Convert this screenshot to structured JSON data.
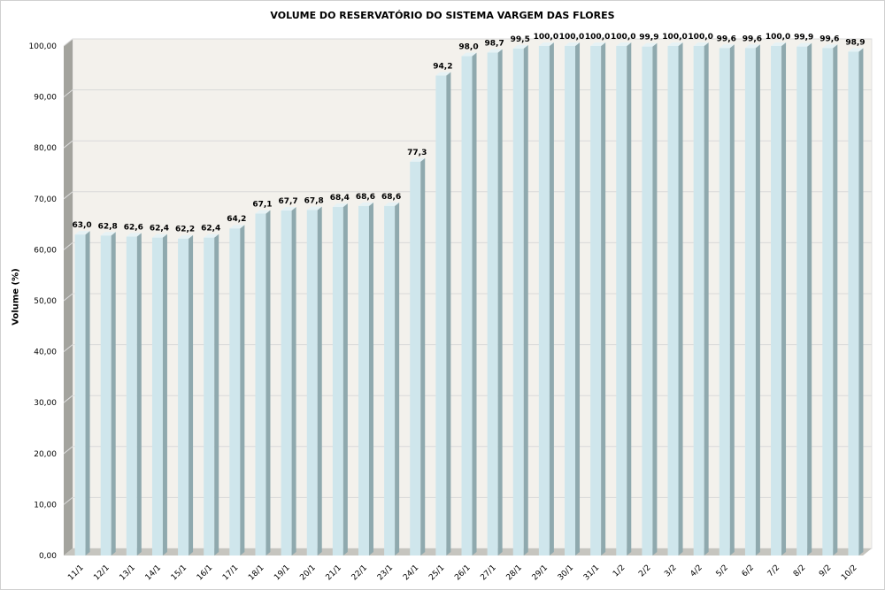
{
  "chart_data": {
    "type": "bar",
    "title": "VOLUME DO RESERVATÓRIO DO SISTEMA VARGEM DAS FLORES",
    "xlabel": "",
    "ylabel": "Volume (%)",
    "ylim": [
      0,
      100
    ],
    "yticks": [
      "0,00",
      "10,00",
      "20,00",
      "30,00",
      "40,00",
      "50,00",
      "60,00",
      "70,00",
      "80,00",
      "90,00",
      "100,00"
    ],
    "grid": true,
    "categories": [
      "11/1",
      "12/1",
      "13/1",
      "14/1",
      "15/1",
      "16/1",
      "17/1",
      "18/1",
      "19/1",
      "20/1",
      "21/1",
      "22/1",
      "23/1",
      "24/1",
      "25/1",
      "26/1",
      "27/1",
      "28/1",
      "29/1",
      "30/1",
      "31/1",
      "1/2",
      "2/2",
      "3/2",
      "4/2",
      "5/2",
      "6/2",
      "7/2",
      "8/2",
      "9/2",
      "10/2"
    ],
    "values": [
      63.0,
      62.8,
      62.6,
      62.4,
      62.2,
      62.4,
      64.2,
      67.1,
      67.7,
      67.8,
      68.4,
      68.6,
      68.6,
      77.3,
      94.2,
      98.0,
      98.7,
      99.5,
      100.0,
      100.0,
      100.0,
      100.0,
      99.9,
      100.0,
      100.0,
      99.6,
      99.6,
      100.0,
      99.9,
      99.6,
      98.9
    ],
    "data_labels": [
      "63,0",
      "62,8",
      "62,6",
      "62,4",
      "62,2",
      "62,4",
      "64,2",
      "67,1",
      "67,7",
      "67,8",
      "68,4",
      "68,6",
      "68,6",
      "77,3",
      "94,2",
      "98,0",
      "98,7",
      "99,5",
      "100,0",
      "100,0",
      "100,0",
      "100,0",
      "99,9",
      "100,0",
      "100,0",
      "99,6",
      "99,6",
      "100,0",
      "99,9",
      "99,6",
      "98,9"
    ],
    "colors": {
      "bar_front": "#cfe6ec",
      "bar_side": "#8fa9ae",
      "bar_top": "#e6f2f5",
      "back_wall": "#f3f1ec",
      "side_wall": "#a3a39d",
      "floor": "#c6c5bf",
      "grid": "#d9d9d9"
    }
  }
}
